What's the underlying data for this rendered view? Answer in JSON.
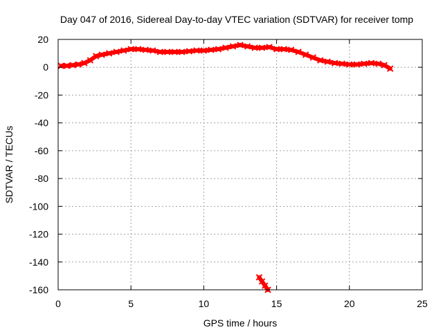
{
  "chart_data": {
    "type": "scatter",
    "title": "Day 047 of 2016, Sidereal Day-to-day VTEC variation (SDTVAR) for receiver tomp",
    "xlabel": "GPS time / hours",
    "ylabel": "SDTVAR / TECUs",
    "xlim": [
      0,
      25
    ],
    "ylim": [
      -160,
      20
    ],
    "xticks": [
      0,
      5,
      10,
      15,
      20,
      25
    ],
    "yticks": [
      20,
      0,
      -20,
      -40,
      -60,
      -80,
      -100,
      -120,
      -140,
      -160
    ],
    "grid": true,
    "series_color": "#ff0000",
    "series": [
      {
        "name": "main",
        "x": [
          0.2,
          0.6,
          1.0,
          1.4,
          1.8,
          2.2,
          2.6,
          3.0,
          3.5,
          4.0,
          4.5,
          5.0,
          5.5,
          6.0,
          6.5,
          7.0,
          7.5,
          8.0,
          8.5,
          9.0,
          9.5,
          10.0,
          10.5,
          11.0,
          11.5,
          12.0,
          12.5,
          13.0,
          13.5,
          14.0,
          14.5,
          15.0,
          15.5,
          16.0,
          16.5,
          17.0,
          17.5,
          18.0,
          18.5,
          19.0,
          19.5,
          20.0,
          20.5,
          21.0,
          21.5,
          22.0,
          22.4,
          22.8
        ],
        "y": [
          1,
          1,
          1.5,
          2,
          3,
          5,
          8,
          9,
          10,
          11,
          12,
          13,
          13,
          12.5,
          12,
          11,
          11,
          11,
          11,
          11.5,
          12,
          12,
          12.5,
          13,
          14,
          15,
          16,
          15,
          14,
          14,
          14.5,
          13,
          13,
          12.5,
          11,
          9,
          7,
          5,
          4,
          3,
          2.5,
          2,
          2,
          2.5,
          3,
          2.5,
          1.5,
          -1
        ]
      },
      {
        "name": "segment",
        "x": [
          13.8,
          14.0,
          14.2,
          14.4
        ],
        "y": [
          -151,
          -154,
          -157,
          -160
        ]
      }
    ]
  }
}
